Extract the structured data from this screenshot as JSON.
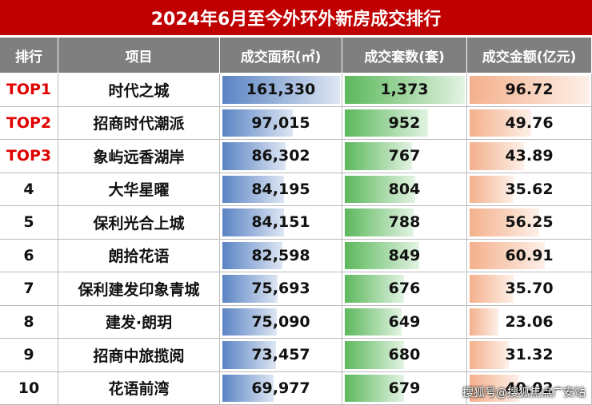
{
  "title": "2024年6月至今外环外新房成交排行",
  "table": {
    "header": [
      "排行",
      "项目",
      "成交面积(㎡)",
      "成交套数(套)",
      "成交金额(亿元)"
    ],
    "rows": [
      [
        "TOP1",
        "时代之城",
        "161,330",
        "1,373",
        "96.72"
      ],
      [
        "TOP2",
        "招商时代潮派",
        "97,015",
        "952",
        "49.76"
      ],
      [
        "TOP3",
        "象屿远香湖岸",
        "86,302",
        "767",
        "43.89"
      ],
      [
        "4",
        "大华星曜",
        "84,195",
        "804",
        "35.62"
      ],
      [
        "5",
        "保利光合上城",
        "84,151",
        "788",
        "56.25"
      ],
      [
        "6",
        "朗拾花语",
        "82,598",
        "849",
        "60.91"
      ],
      [
        "7",
        "保利建发印象青城",
        "75,693",
        "676",
        "35.70"
      ],
      [
        "8",
        "建发·朗玥",
        "75,090",
        "649",
        "23.06"
      ],
      [
        "9",
        "招商中旅揽阅",
        "73,457",
        "680",
        "31.32"
      ],
      [
        "10",
        "花语前湾",
        "69,977",
        "679",
        "40.02"
      ]
    ]
  },
  "watermark": "搜狐号@搜狐焦点广安站"
}
